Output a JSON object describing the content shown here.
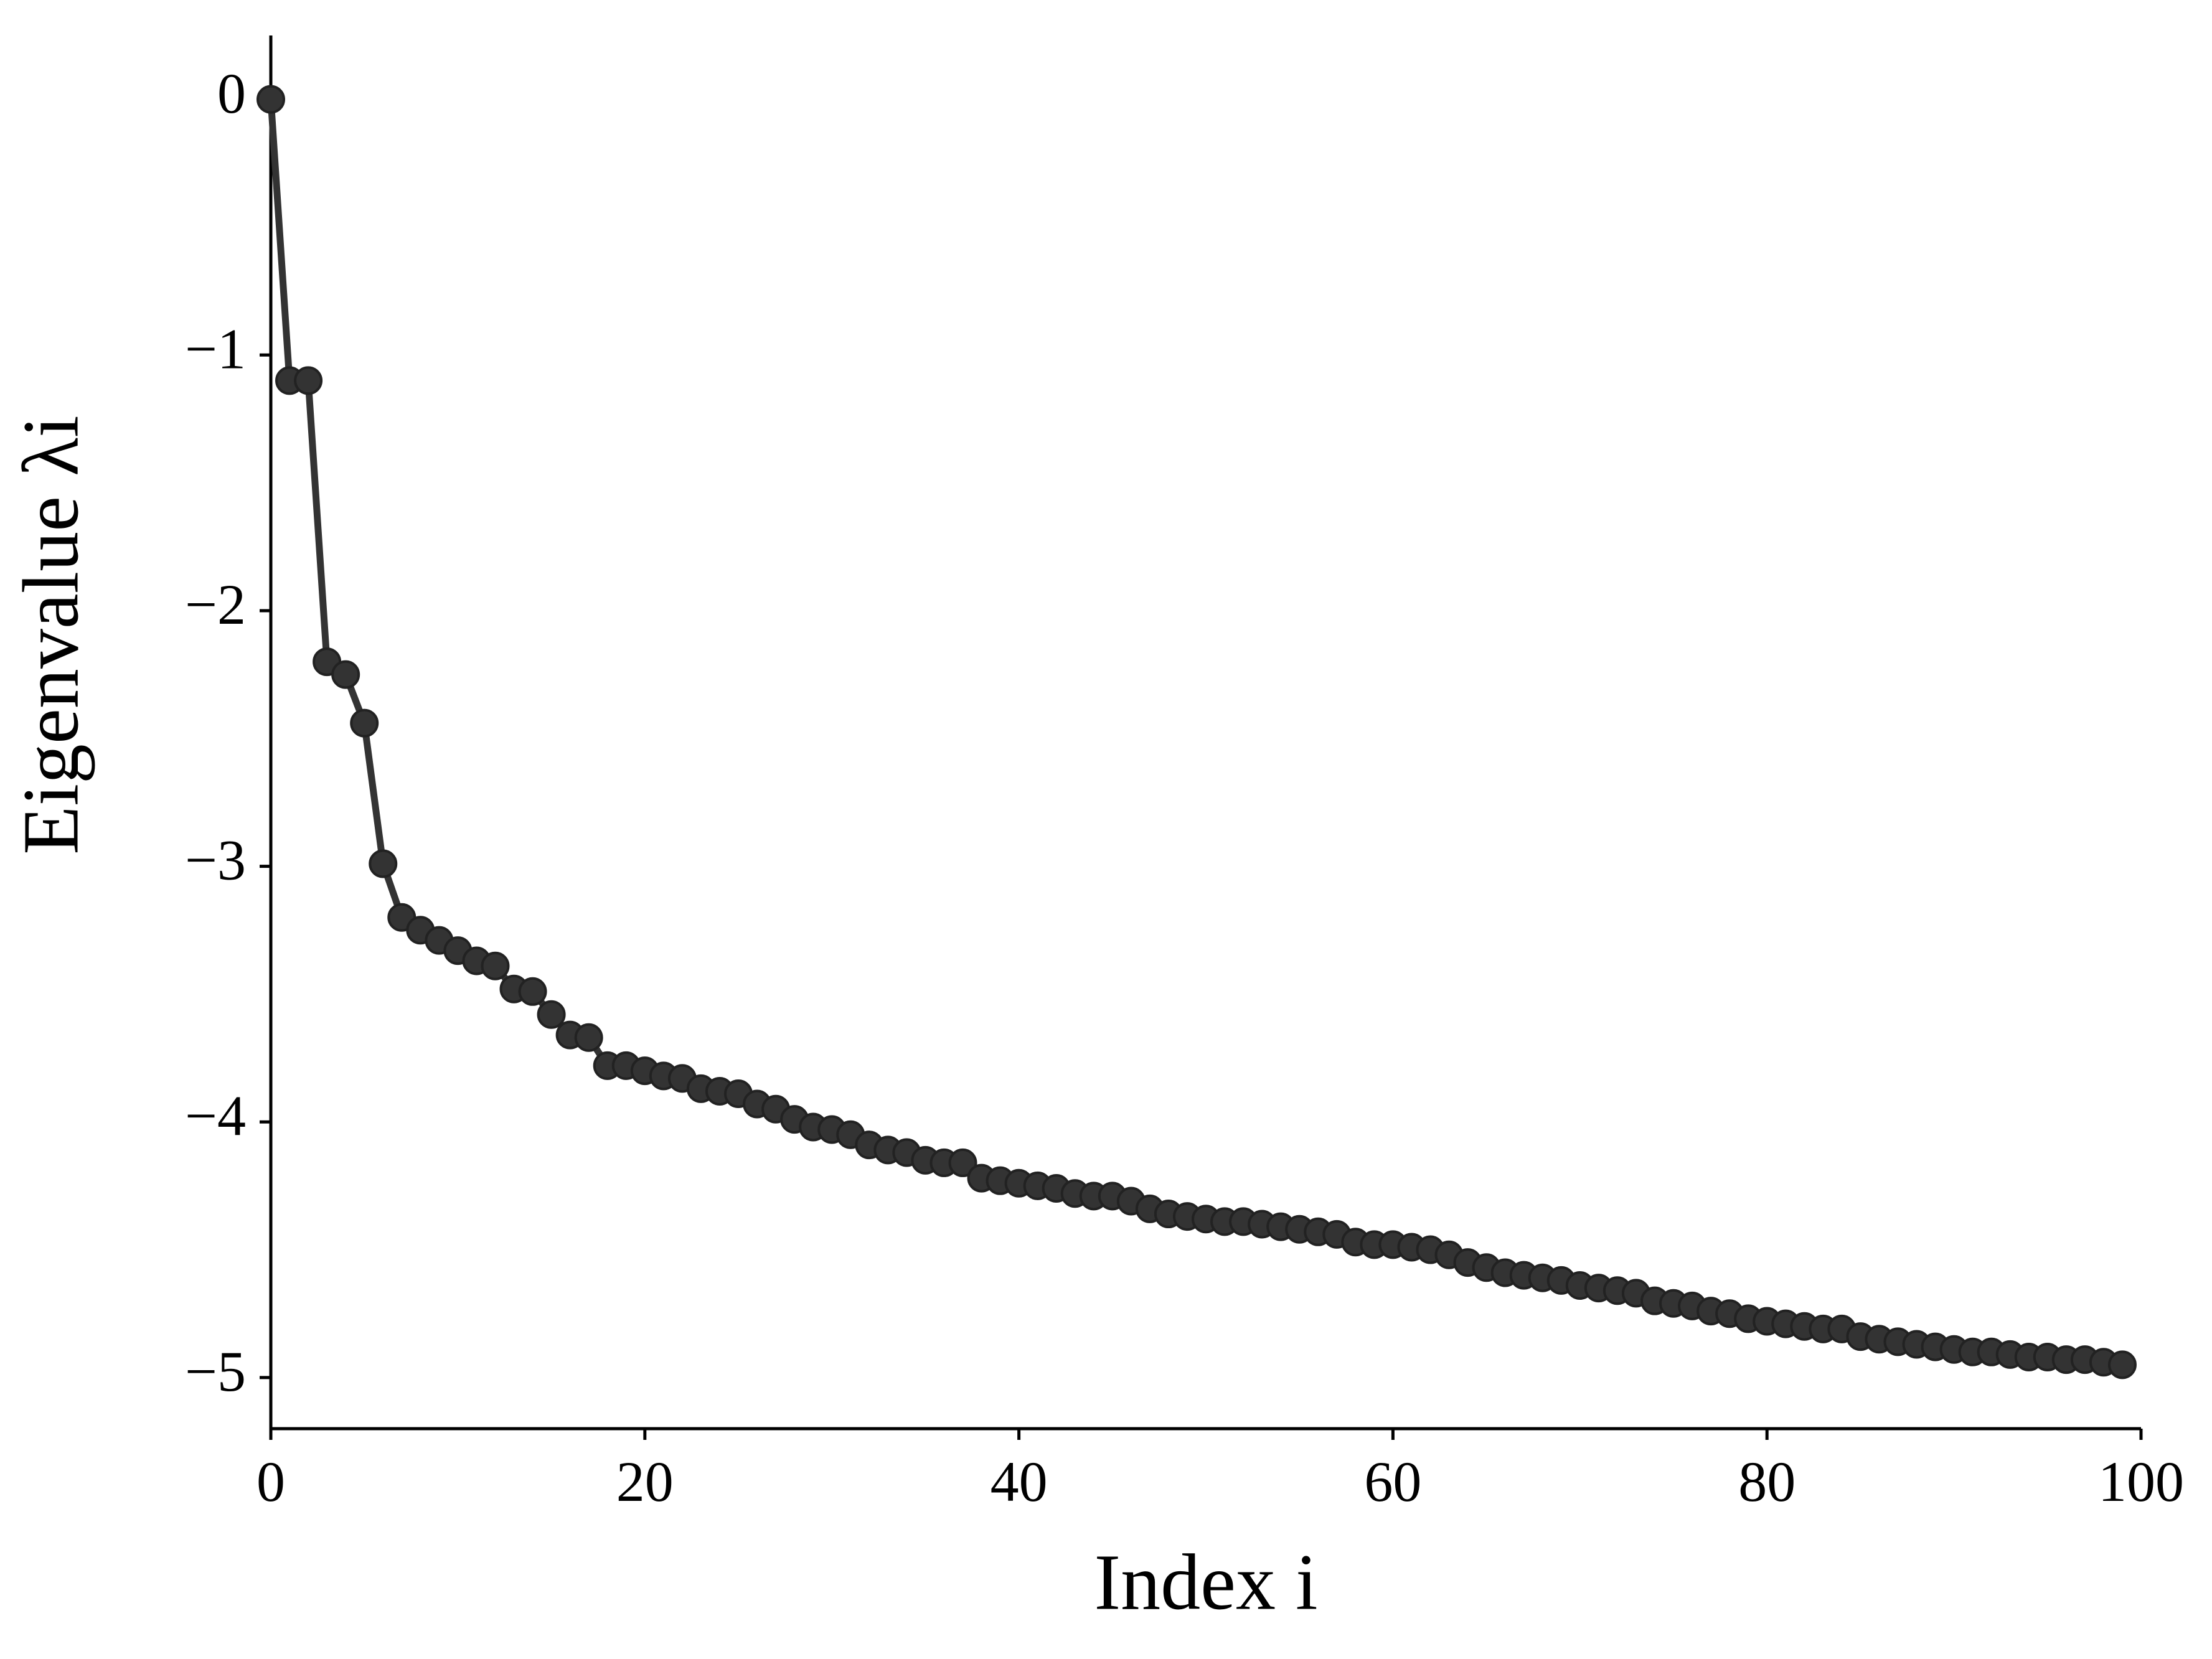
{
  "chart_data": {
    "type": "line",
    "xlabel": "Index i",
    "ylabel": "Eigenvalue λi",
    "x": [
      0,
      1,
      2,
      3,
      4,
      5,
      6,
      7,
      8,
      9,
      10,
      11,
      12,
      13,
      14,
      15,
      16,
      17,
      18,
      19,
      20,
      21,
      22,
      23,
      24,
      25,
      26,
      27,
      28,
      29,
      30,
      31,
      32,
      33,
      34,
      35,
      36,
      37,
      38,
      39,
      40,
      41,
      42,
      43,
      44,
      45,
      46,
      47,
      48,
      49,
      50,
      51,
      52,
      53,
      54,
      55,
      56,
      57,
      58,
      59,
      60,
      61,
      62,
      63,
      64,
      65,
      66,
      67,
      68,
      69,
      70,
      71,
      72,
      73,
      74,
      75,
      76,
      77,
      78,
      79,
      80,
      81,
      82,
      83,
      84,
      85,
      86,
      87,
      88,
      89,
      90,
      91,
      92,
      93,
      94,
      95,
      96,
      97,
      98,
      99
    ],
    "series": [
      {
        "color": "#333333",
        "values": [
          0,
          -1.1,
          -1.1,
          -2.2,
          -2.25,
          -2.44,
          -2.99,
          -3.2,
          -3.25,
          -3.29,
          -3.33,
          -3.37,
          -3.39,
          -3.48,
          -3.49,
          -3.58,
          -3.66,
          -3.67,
          -3.78,
          -3.78,
          -3.8,
          -3.82,
          -3.83,
          -3.87,
          -3.88,
          -3.89,
          -3.93,
          -3.95,
          -3.99,
          -4.02,
          -4.03,
          -4.05,
          -4.09,
          -4.11,
          -4.12,
          -4.15,
          -4.16,
          -4.16,
          -4.22,
          -4.23,
          -4.24,
          -4.25,
          -4.26,
          -4.28,
          -4.29,
          -4.29,
          -4.31,
          -4.34,
          -4.36,
          -4.37,
          -4.38,
          -4.39,
          -4.39,
          -4.4,
          -4.41,
          -4.42,
          -4.43,
          -4.44,
          -4.47,
          -4.48,
          -4.48,
          -4.49,
          -4.5,
          -4.52,
          -4.55,
          -4.57,
          -4.59,
          -4.6,
          -4.61,
          -4.62,
          -4.64,
          -4.65,
          -4.66,
          -4.67,
          -4.7,
          -4.71,
          -4.72,
          -4.74,
          -4.75,
          -4.77,
          -4.78,
          -4.79,
          -4.8,
          -4.81,
          -4.81,
          -4.84,
          -4.85,
          -4.86,
          -4.87,
          -4.88,
          -4.89,
          -4.9,
          -4.9,
          -4.91,
          -4.92,
          -4.92,
          -4.93,
          -4.93,
          -4.94,
          -4.95
        ]
      }
    ],
    "xlim": [
      0,
      100
    ],
    "xticks": [
      0,
      20,
      40,
      60,
      80,
      100
    ],
    "ylim": [
      -5.2,
      0.25
    ],
    "yticks": [
      0,
      {
        "value": -1,
        "label": "−1"
      },
      {
        "value": -2,
        "label": "−2"
      },
      {
        "value": -3,
        "label": "−3"
      },
      {
        "value": -4,
        "label": "−4"
      },
      {
        "value": -5,
        "label": "−5"
      }
    ],
    "grid": false
  }
}
